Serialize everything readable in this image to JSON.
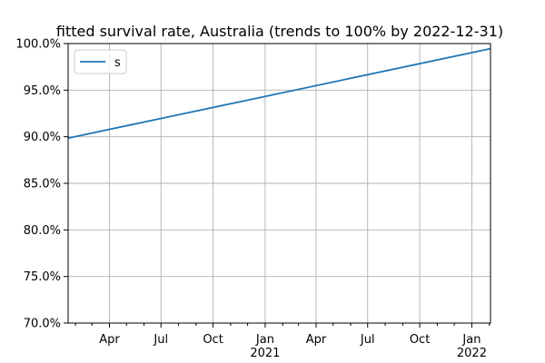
{
  "chart_data": {
    "type": "line",
    "title": "fitted survival rate, Australia (trends to 100% by 2022-12-31)",
    "xlabel": "",
    "ylabel": "",
    "x_range": [
      "2020-01-19",
      "2022-02-03"
    ],
    "ylim": [
      70.0,
      100.0
    ],
    "y_ticks": [
      {
        "value": 70,
        "label": "70.0%"
      },
      {
        "value": 75,
        "label": "75.0%"
      },
      {
        "value": 80,
        "label": "80.0%"
      },
      {
        "value": 85,
        "label": "85.0%"
      },
      {
        "value": 90,
        "label": "90.0%"
      },
      {
        "value": 95,
        "label": "95.0%"
      },
      {
        "value": 100,
        "label": "100.0%"
      }
    ],
    "x_major_ticks": [
      {
        "date": "2020-04-01",
        "label": "Apr",
        "sublabel": ""
      },
      {
        "date": "2020-07-01",
        "label": "Jul",
        "sublabel": ""
      },
      {
        "date": "2020-10-01",
        "label": "Oct",
        "sublabel": ""
      },
      {
        "date": "2021-01-01",
        "label": "Jan",
        "sublabel": "2021"
      },
      {
        "date": "2021-04-01",
        "label": "Apr",
        "sublabel": ""
      },
      {
        "date": "2021-07-01",
        "label": "Jul",
        "sublabel": ""
      },
      {
        "date": "2021-10-01",
        "label": "Oct",
        "sublabel": ""
      },
      {
        "date": "2022-01-01",
        "label": "Jan",
        "sublabel": "2022"
      }
    ],
    "x_minor_ticks": [
      "2020-02-01",
      "2020-03-01",
      "2020-05-01",
      "2020-06-01",
      "2020-08-01",
      "2020-09-01",
      "2020-11-01",
      "2020-12-01",
      "2021-02-01",
      "2021-03-01",
      "2021-05-01",
      "2021-06-01",
      "2021-08-01",
      "2021-09-01",
      "2021-11-01",
      "2021-12-01",
      "2022-02-01"
    ],
    "grid": true,
    "legend_position": "upper-left",
    "series": [
      {
        "name": "s",
        "color": "#1f77b4",
        "x": [
          "2020-01-19",
          "2022-02-03"
        ],
        "y": [
          89.85,
          99.45
        ]
      }
    ]
  }
}
